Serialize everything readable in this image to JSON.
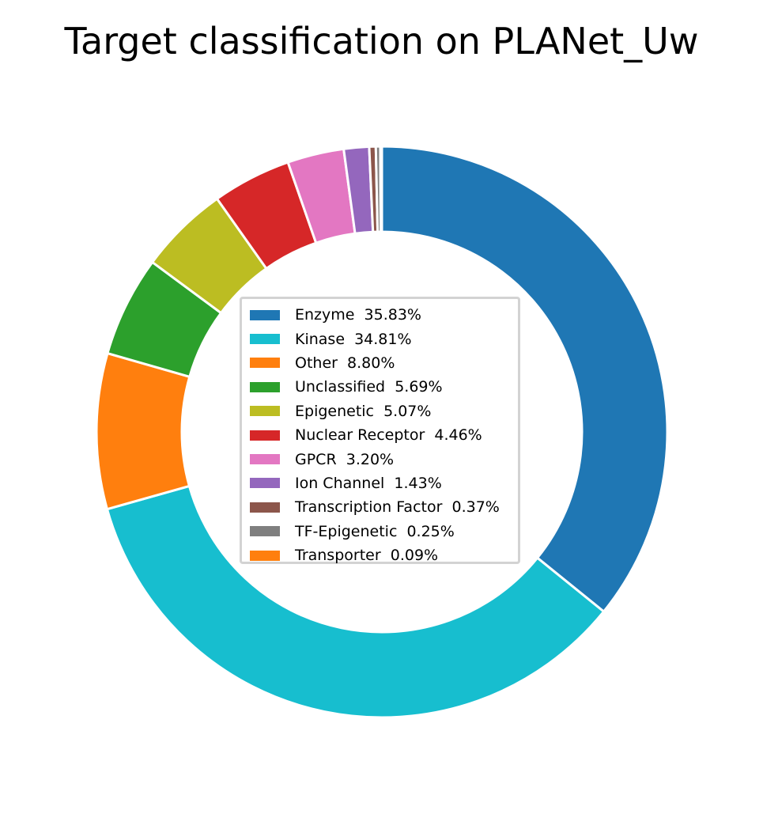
{
  "chart_data": {
    "type": "pie",
    "title": "Target classification on PLANet_Uw",
    "legend_position": "center",
    "slices": [
      {
        "label": "Enzyme",
        "value": 35.83,
        "display": "Enzyme  35.83%",
        "color": "#1f77b4"
      },
      {
        "label": "Kinase",
        "value": 34.81,
        "display": "Kinase  34.81%",
        "color": "#17becf"
      },
      {
        "label": "Other",
        "value": 8.8,
        "display": "Other  8.80%",
        "color": "#ff7f0e"
      },
      {
        "label": "Unclassified",
        "value": 5.69,
        "display": "Unclassified  5.69%",
        "color": "#2ca02c"
      },
      {
        "label": "Epigenetic",
        "value": 5.07,
        "display": "Epigenetic  5.07%",
        "color": "#bcbd22"
      },
      {
        "label": "Nuclear Receptor",
        "value": 4.46,
        "display": "Nuclear Receptor  4.46%",
        "color": "#d62728"
      },
      {
        "label": "GPCR",
        "value": 3.2,
        "display": "GPCR  3.20%",
        "color": "#e377c2"
      },
      {
        "label": "Ion Channel",
        "value": 1.43,
        "display": "Ion Channel  1.43%",
        "color": "#9467bd"
      },
      {
        "label": "Transcription Factor",
        "value": 0.37,
        "display": "Transcription Factor  0.37%",
        "color": "#8c564b"
      },
      {
        "label": "TF-Epigenetic",
        "value": 0.25,
        "display": "TF-Epigenetic  0.25%",
        "color": "#7f7f7f"
      },
      {
        "label": "Transporter",
        "value": 0.09,
        "display": "Transporter  0.09%",
        "color": "#ff7f0e"
      }
    ]
  }
}
